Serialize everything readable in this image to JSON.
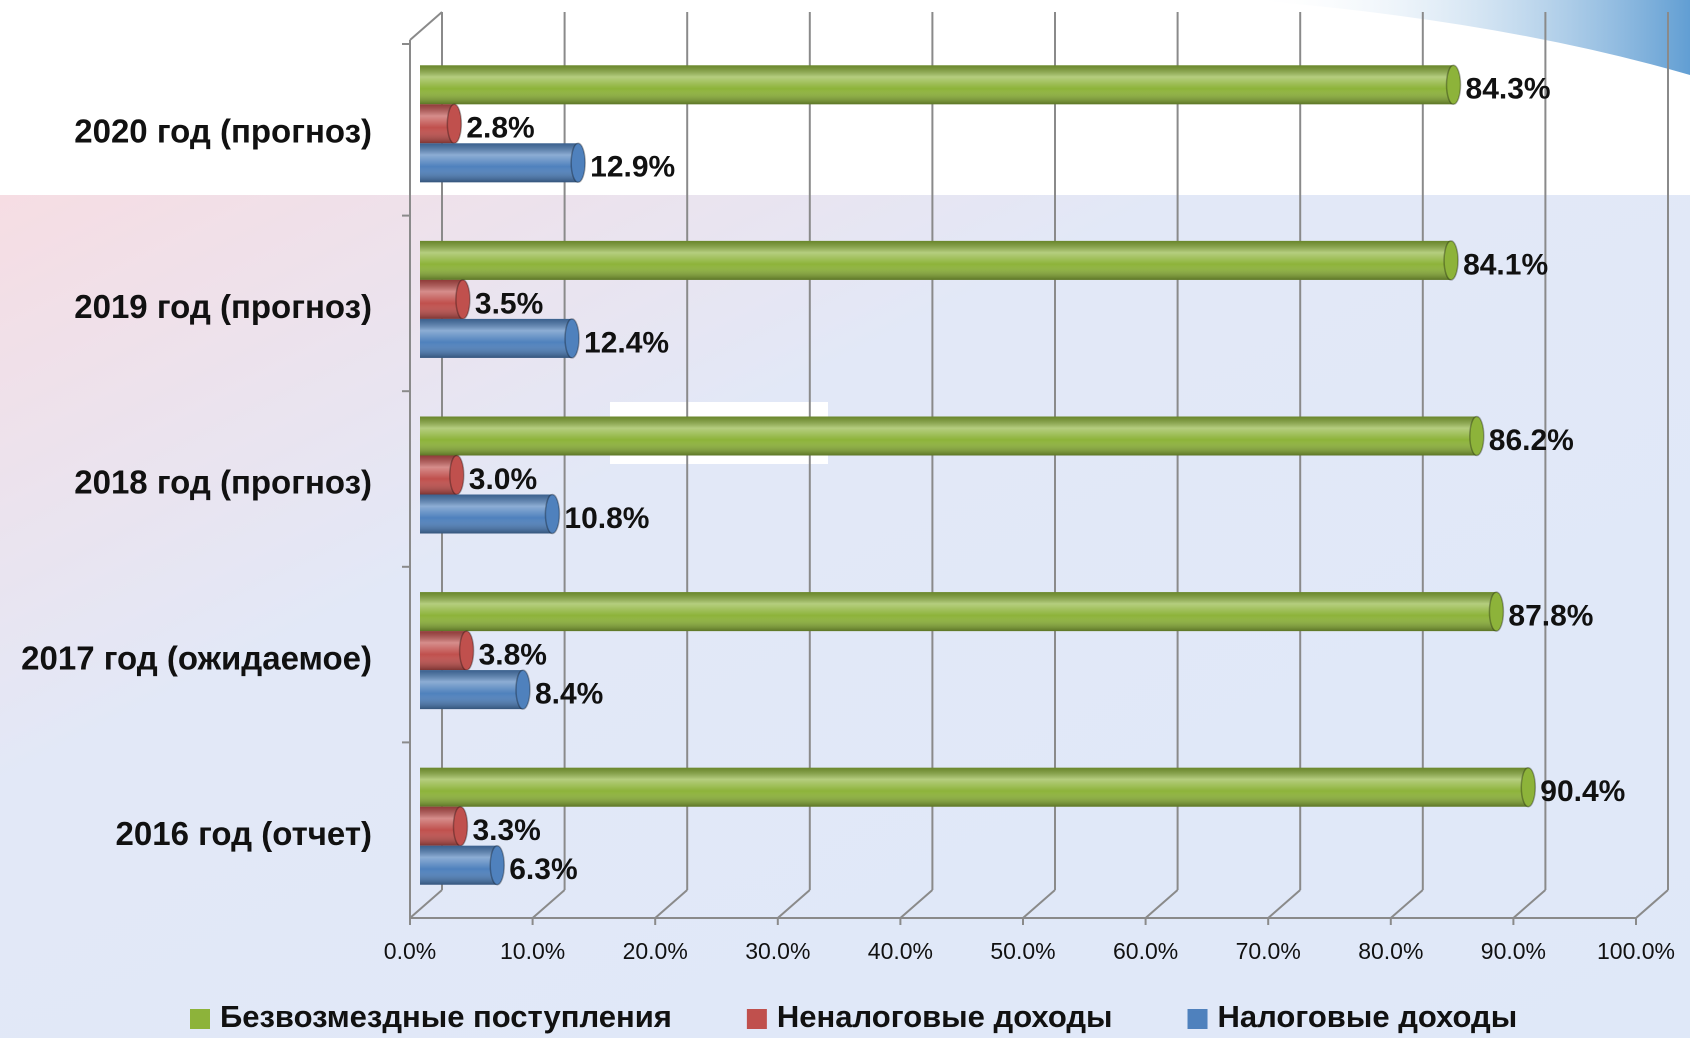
{
  "chart_data": {
    "type": "bar",
    "orientation": "horizontal",
    "categories": [
      "2020 год (прогноз)",
      "2019 год (прогноз)",
      "2018 год (прогноз)",
      "2017 год (ожидаемое)",
      "2016 год (отчет)"
    ],
    "series": [
      {
        "name": "Безвозмездные поступления",
        "color": "#8db33a",
        "values": [
          84.3,
          84.1,
          86.2,
          87.8,
          90.4
        ],
        "value_labels": [
          "84.3%",
          "84.1%",
          "86.2%",
          "87.8%",
          "90.4%"
        ]
      },
      {
        "name": "Неналоговые доходы",
        "color": "#c0504d",
        "values": [
          2.8,
          3.5,
          3.0,
          3.8,
          3.3
        ],
        "value_labels": [
          "2.8%",
          "3.5%",
          "3.0%",
          "3.8%",
          "3.3%"
        ]
      },
      {
        "name": "Налоговые доходы",
        "color": "#4f81bd",
        "values": [
          12.9,
          12.4,
          10.8,
          8.4,
          6.3
        ],
        "value_labels": [
          "12.9%",
          "12.4%",
          "10.8%",
          "8.4%",
          "6.3%"
        ]
      }
    ],
    "xlim": [
      0,
      100
    ],
    "xticks": [
      {
        "value": 0,
        "label": "0.0%"
      },
      {
        "value": 10,
        "label": "10.0%"
      },
      {
        "value": 20,
        "label": "20.0%"
      },
      {
        "value": 30,
        "label": "30.0%"
      },
      {
        "value": 40,
        "label": "40.0%"
      },
      {
        "value": 50,
        "label": "50.0%"
      },
      {
        "value": 60,
        "label": "60.0%"
      },
      {
        "value": 70,
        "label": "70.0%"
      },
      {
        "value": 80,
        "label": "80.0%"
      },
      {
        "value": 90,
        "label": "90.0%"
      },
      {
        "value": 100,
        "label": "100.0%"
      }
    ],
    "grid": true,
    "legend": "bottom"
  }
}
